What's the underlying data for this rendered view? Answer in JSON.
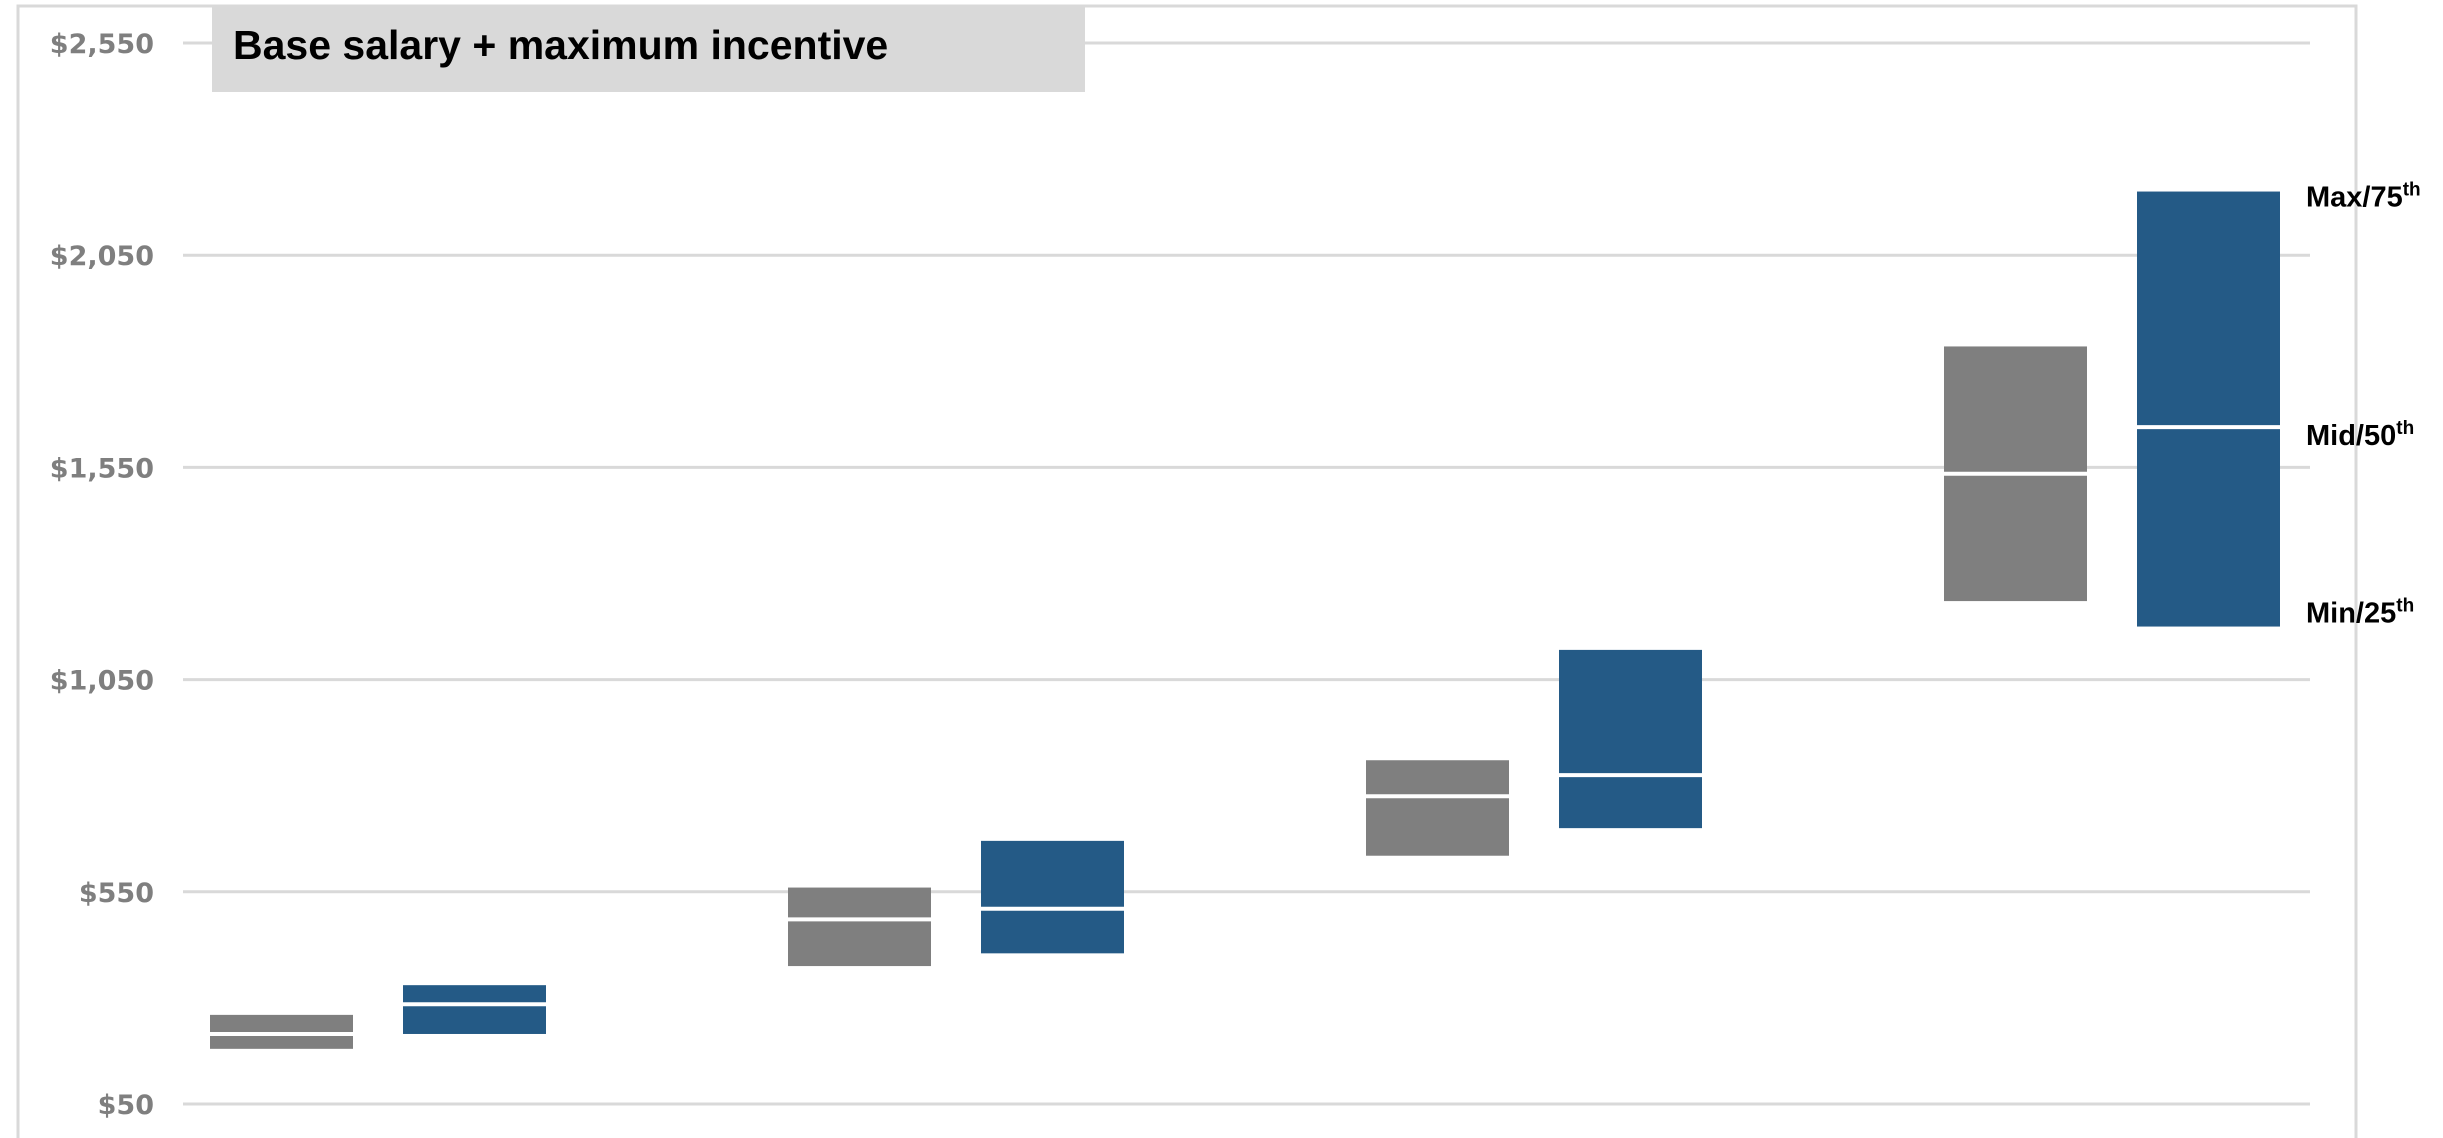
{
  "chart_data": {
    "type": "floating-bar",
    "title": "Base salary + maximum incentive",
    "y_ticks": [
      "$50",
      "$550",
      "$1,050",
      "$1,550",
      "$2,050",
      "$2,550"
    ],
    "ylim": [
      50,
      2550
    ],
    "grid": true,
    "legend": [
      "Max/75",
      "Mid/50",
      "Min/25"
    ],
    "legend_suffix": "th",
    "colors": {
      "gray": "#7f7f7f",
      "blue": "#245a86",
      "grid": "#d9d9d9",
      "title_bg": "#d9d9d9"
    },
    "bars": [
      {
        "color": "gray",
        "min": 180,
        "mid": 215,
        "max": 260
      },
      {
        "color": "blue",
        "min": 215,
        "mid": 285,
        "max": 330
      },
      {
        "color": "gray",
        "min": 375,
        "mid": 485,
        "max": 560
      },
      {
        "color": "blue",
        "min": 405,
        "mid": 510,
        "max": 670
      },
      {
        "color": "gray",
        "min": 635,
        "mid": 775,
        "max": 860
      },
      {
        "color": "blue",
        "min": 700,
        "mid": 825,
        "max": 1120
      },
      {
        "color": "gray",
        "min": 1235,
        "mid": 1535,
        "max": 1835
      },
      {
        "color": "blue",
        "min": 1175,
        "mid": 1645,
        "max": 2200
      }
    ]
  }
}
